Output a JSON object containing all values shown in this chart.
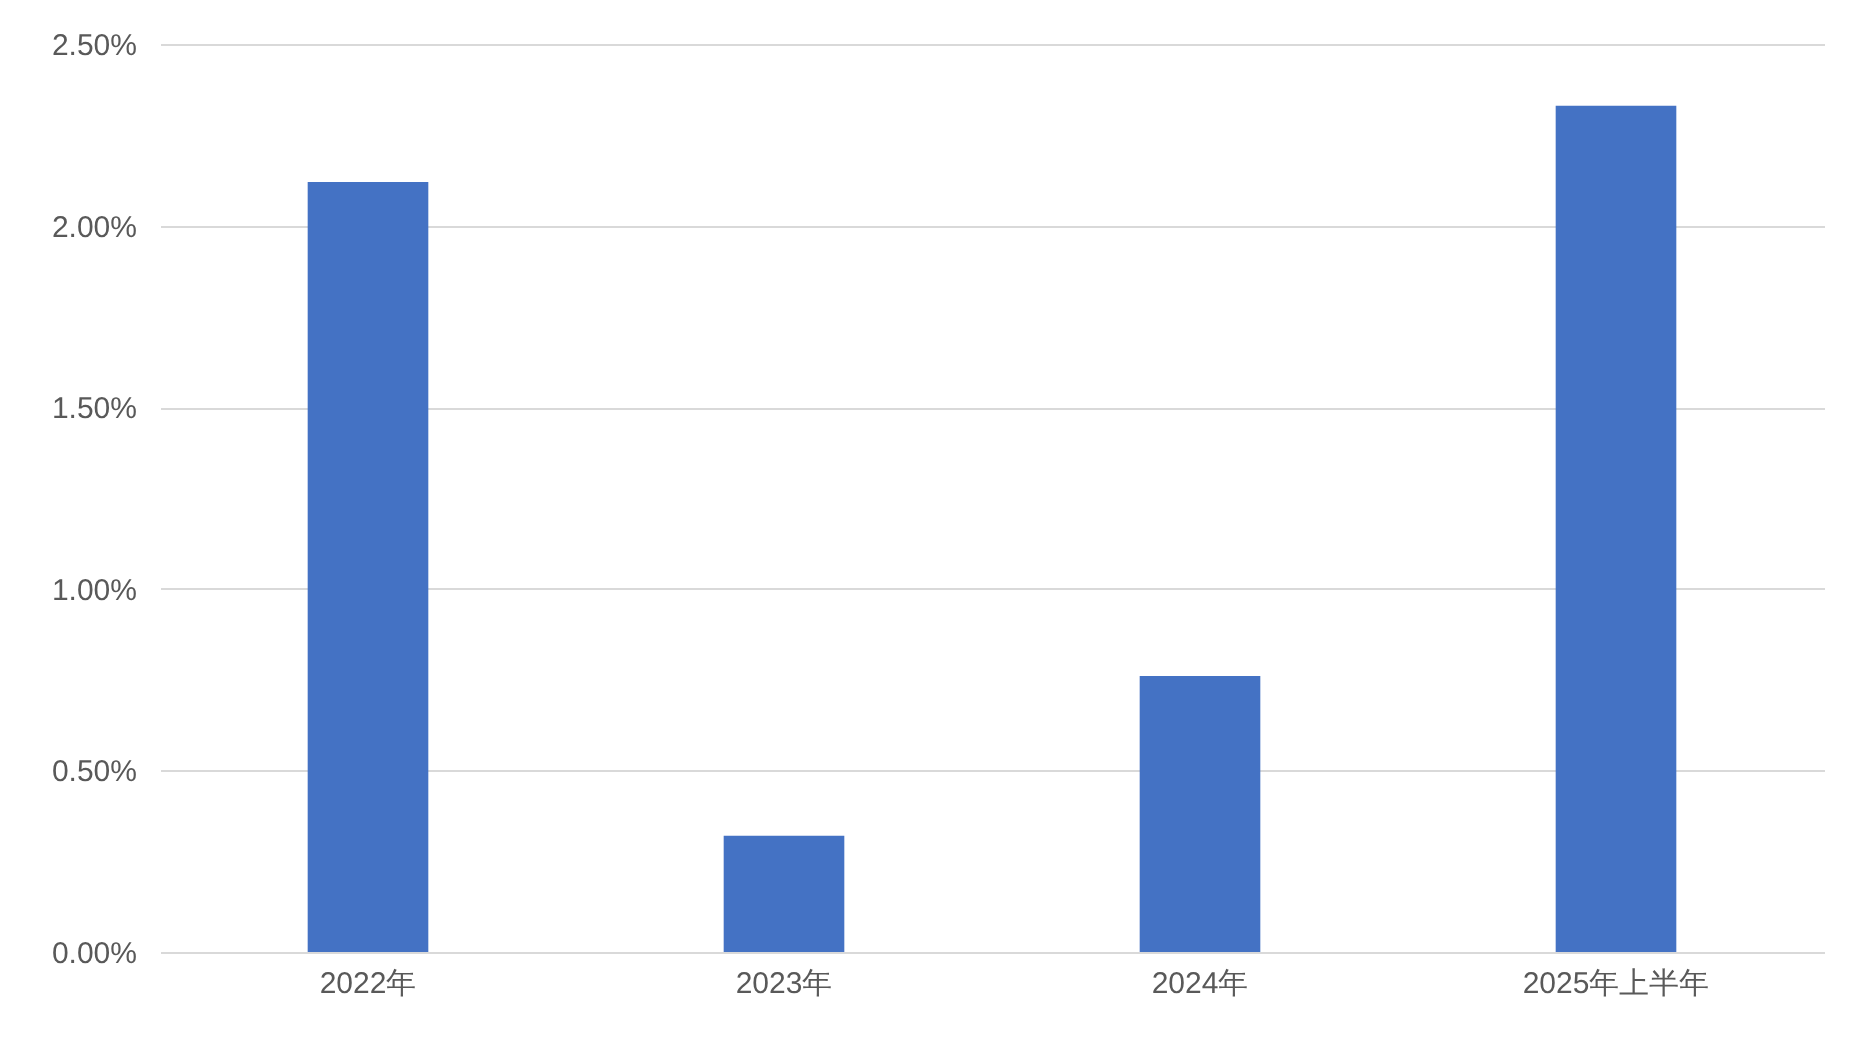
{
  "chart_data": {
    "type": "bar",
    "categories": [
      "2022年",
      "2023年",
      "2024年",
      "2025年上半年"
    ],
    "values": [
      2.12,
      0.32,
      0.76,
      2.33
    ],
    "color": "#4472c4",
    "ylim": [
      0,
      2.5
    ],
    "yticks": [
      {
        "value": 0,
        "label": "0.00%"
      },
      {
        "value": 0.5,
        "label": "0.50%"
      },
      {
        "value": 1,
        "label": "1.00%"
      },
      {
        "value": 1.5,
        "label": "1.50%"
      },
      {
        "value": 2,
        "label": "2.00%"
      },
      {
        "value": 2.5,
        "label": "2.50%"
      }
    ],
    "grid": "y"
  }
}
